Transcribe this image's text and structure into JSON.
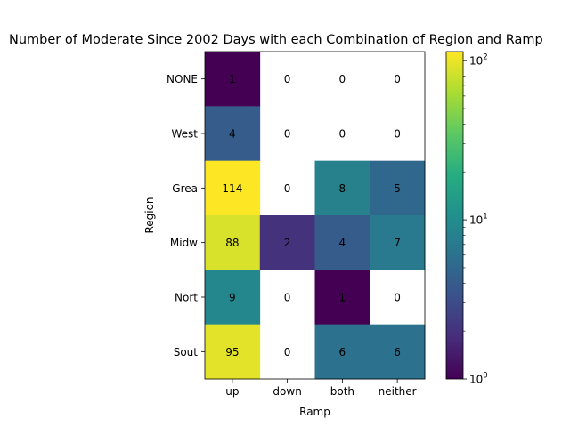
{
  "chart_data": {
    "type": "heatmap",
    "title": "Number of Moderate Since 2002 Days with each Combination of Region and Ramp",
    "xlabel": "Ramp",
    "ylabel": "Region",
    "x_categories": [
      "up",
      "down",
      "both",
      "neither"
    ],
    "y_categories": [
      "NONE",
      "West",
      "Grea",
      "Midw",
      "Nort",
      "Sout"
    ],
    "values": [
      [
        1,
        0,
        0,
        0
      ],
      [
        4,
        0,
        0,
        0
      ],
      [
        114,
        0,
        8,
        5
      ],
      [
        88,
        2,
        4,
        7
      ],
      [
        9,
        0,
        1,
        0
      ],
      [
        95,
        0,
        6,
        6
      ]
    ],
    "colorbar": {
      "scale": "log",
      "colormap": "viridis",
      "vmin": 1,
      "vmax": 114,
      "ticks": [
        {
          "base": "10",
          "exp": "0",
          "value": 1
        },
        {
          "base": "10",
          "exp": "1",
          "value": 10
        },
        {
          "base": "10",
          "exp": "2",
          "value": 100
        }
      ]
    },
    "zero_cells": "blank",
    "grid": false
  }
}
